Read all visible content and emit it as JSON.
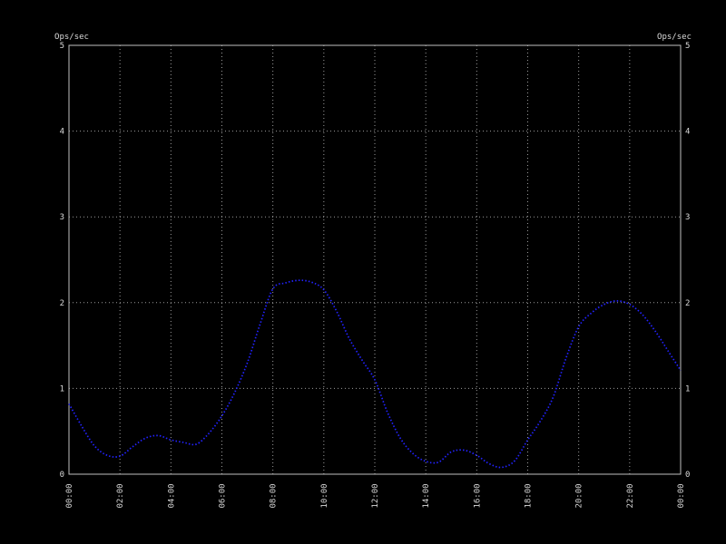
{
  "chart": {
    "unit_label_left": "Ops/sec",
    "unit_label_right": "Ops/sec",
    "colors": {
      "background": "#000000",
      "frame": "#c0c0c0",
      "grid": "#9c9c9c",
      "text": "#d9d9d9",
      "series": "#2222ff"
    }
  },
  "chart_data": {
    "type": "line",
    "title": "",
    "xlabel": "",
    "ylabel": "Ops/sec",
    "ylim": [
      0,
      5
    ],
    "xlim_hours": [
      0,
      24
    ],
    "y_ticks": [
      0,
      1,
      2,
      3,
      4,
      5
    ],
    "x_ticks_hours": [
      0,
      2,
      4,
      6,
      8,
      10,
      12,
      14,
      16,
      18,
      20,
      22,
      24
    ],
    "x_tick_labels": [
      "00:00",
      "02:00",
      "04:00",
      "06:00",
      "08:00",
      "10:00",
      "12:00",
      "14:00",
      "16:00",
      "18:00",
      "20:00",
      "22:00",
      "00:00"
    ],
    "grid": "dotted",
    "legend": "none",
    "series": [
      {
        "name": "Ops/sec",
        "color": "#2222ff",
        "style": "dotted",
        "x_hours": [
          0,
          0.5,
          1,
          1.5,
          2,
          2.5,
          3,
          3.5,
          4,
          4.5,
          5,
          5.5,
          6,
          6.5,
          7,
          7.5,
          8,
          8.5,
          9,
          9.5,
          10,
          10.5,
          11,
          11.5,
          12,
          12.5,
          13,
          13.5,
          14,
          14.5,
          15,
          15.5,
          16,
          16.5,
          17,
          17.5,
          18,
          18.5,
          19,
          19.5,
          20,
          20.5,
          21,
          21.5,
          22,
          22.5,
          23,
          23.5,
          24
        ],
        "values": [
          0.82,
          0.56,
          0.33,
          0.22,
          0.21,
          0.32,
          0.42,
          0.45,
          0.4,
          0.37,
          0.35,
          0.48,
          0.68,
          0.95,
          1.3,
          1.75,
          2.16,
          2.23,
          2.26,
          2.24,
          2.15,
          1.9,
          1.58,
          1.33,
          1.1,
          0.72,
          0.42,
          0.24,
          0.15,
          0.14,
          0.26,
          0.28,
          0.22,
          0.12,
          0.08,
          0.16,
          0.4,
          0.62,
          0.9,
          1.35,
          1.72,
          1.88,
          1.98,
          2.02,
          1.98,
          1.86,
          1.67,
          1.44,
          1.21
        ]
      }
    ]
  }
}
